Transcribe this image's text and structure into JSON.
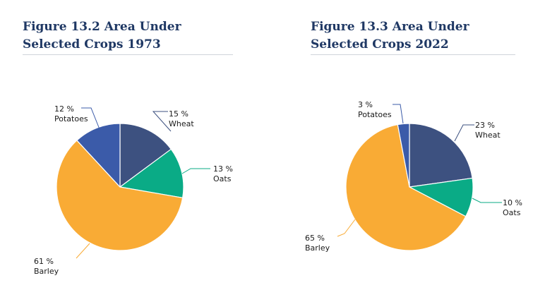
{
  "chart_data": [
    {
      "type": "pie",
      "figure_label": "Figure 13.2",
      "title": "Figure 13.2 Area Under Selected Crops 1973",
      "categories": [
        "Wheat",
        "Oats",
        "Barley",
        "Potatoes"
      ],
      "values": [
        15,
        13,
        61,
        12
      ],
      "value_labels": [
        "15 %",
        "13 %",
        "61 %",
        "12 %"
      ],
      "colors": [
        "#3d5180",
        "#0aab86",
        "#f9ab35",
        "#3b5ba9"
      ],
      "start_angle_deg": 0,
      "direction": "clockwise"
    },
    {
      "type": "pie",
      "figure_label": "Figure 13.3",
      "title": "Figure 13.3 Area Under Selected Crops 2022",
      "categories": [
        "Wheat",
        "Oats",
        "Barley",
        "Potatoes"
      ],
      "values": [
        23,
        10,
        65,
        3
      ],
      "value_labels": [
        "23 %",
        "10 %",
        "65 %",
        "3 %"
      ],
      "colors": [
        "#3d5180",
        "#0aab86",
        "#f9ab35",
        "#3b5ba9"
      ],
      "start_angle_deg": 0,
      "direction": "clockwise"
    }
  ]
}
